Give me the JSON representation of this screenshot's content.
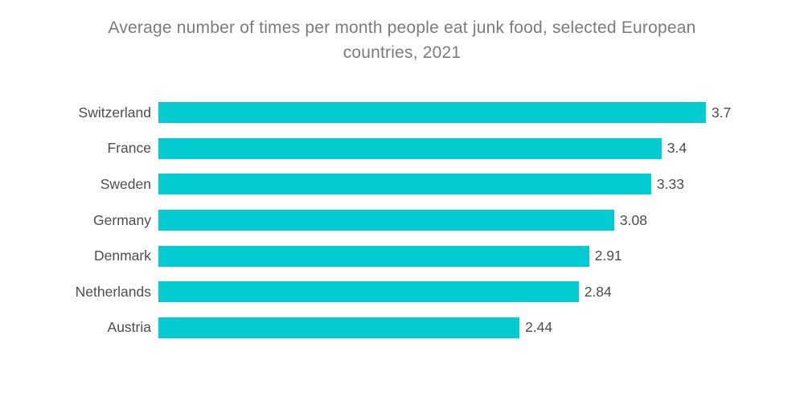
{
  "chart_data": {
    "type": "bar",
    "orientation": "horizontal",
    "title": "Average number of times per month people eat junk food, selected European countries, 2021",
    "categories": [
      "Switzerland",
      "France",
      "Sweden",
      "Germany",
      "Denmark",
      "Netherlands",
      "Austria"
    ],
    "values": [
      3.7,
      3.4,
      3.33,
      3.08,
      2.91,
      2.84,
      2.44
    ],
    "value_labels": [
      "3.7",
      "3.4",
      "3.33",
      "3.08",
      "2.91",
      "2.84",
      "2.44"
    ],
    "xlabel": "",
    "ylabel": "",
    "xlim": [
      0,
      3.7
    ],
    "grid": false,
    "legend": false,
    "bar_color": "#02cbd2"
  },
  "styles": {
    "title_color": "#7b7b7b",
    "label_color": "#4d4d4d",
    "background_color": "#ffffff"
  }
}
